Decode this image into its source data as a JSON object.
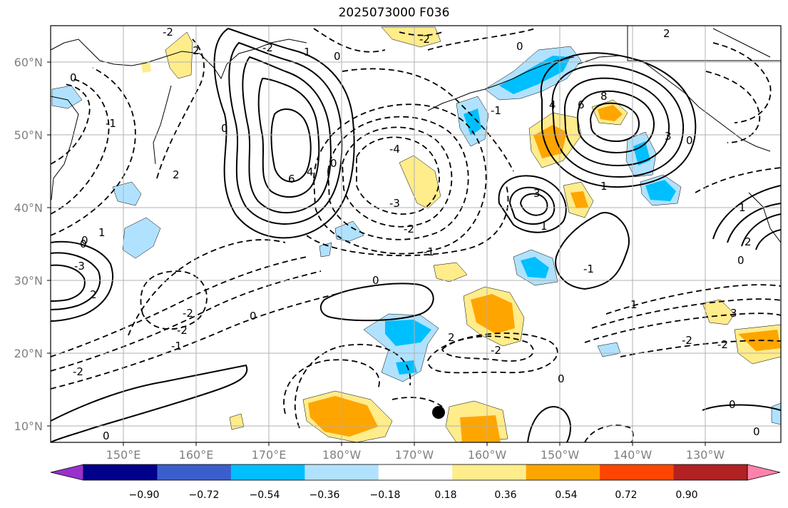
{
  "title": "2025073000 F036",
  "map": {
    "lon_labels": [
      "150°E",
      "160°E",
      "170°E",
      "180°W",
      "170°W",
      "160°W",
      "150°W",
      "140°W",
      "130°W"
    ],
    "lat_labels": [
      "60°N",
      "50°N",
      "40°N",
      "30°N",
      "20°N",
      "10°N"
    ],
    "contour_labels": [
      "-2",
      "0",
      "2",
      "-2",
      "1",
      "0",
      "-1",
      "0",
      "0",
      "8",
      "6",
      "4",
      "0",
      "3",
      "-1",
      "2",
      "6",
      "4",
      "0",
      "-4",
      "-3",
      "-2",
      "-1",
      "3",
      "1",
      "1",
      "0",
      "2",
      "0",
      "-3",
      "1",
      "-2",
      "-2",
      "-1",
      "0",
      "0",
      "2",
      "1",
      "-2",
      "-2",
      "0",
      "2",
      "0",
      "0",
      "3",
      "-2",
      "-2",
      "0",
      "1",
      "2",
      "-2",
      "0",
      "-1"
    ],
    "marker_color": "#000000"
  },
  "colorbar": {
    "ticks": [
      "−0.90",
      "−0.72",
      "−0.54",
      "−0.36",
      "−0.18",
      "0.18",
      "0.36",
      "0.54",
      "0.72",
      "0.90"
    ],
    "colors": [
      "#9932cc",
      "#00008b",
      "#3a5fcd",
      "#00bfff",
      "#b0e2ff",
      "#ffffff",
      "#ffec8b",
      "#ffa500",
      "#ff4500",
      "#b22222",
      "#ff82ab"
    ]
  }
}
